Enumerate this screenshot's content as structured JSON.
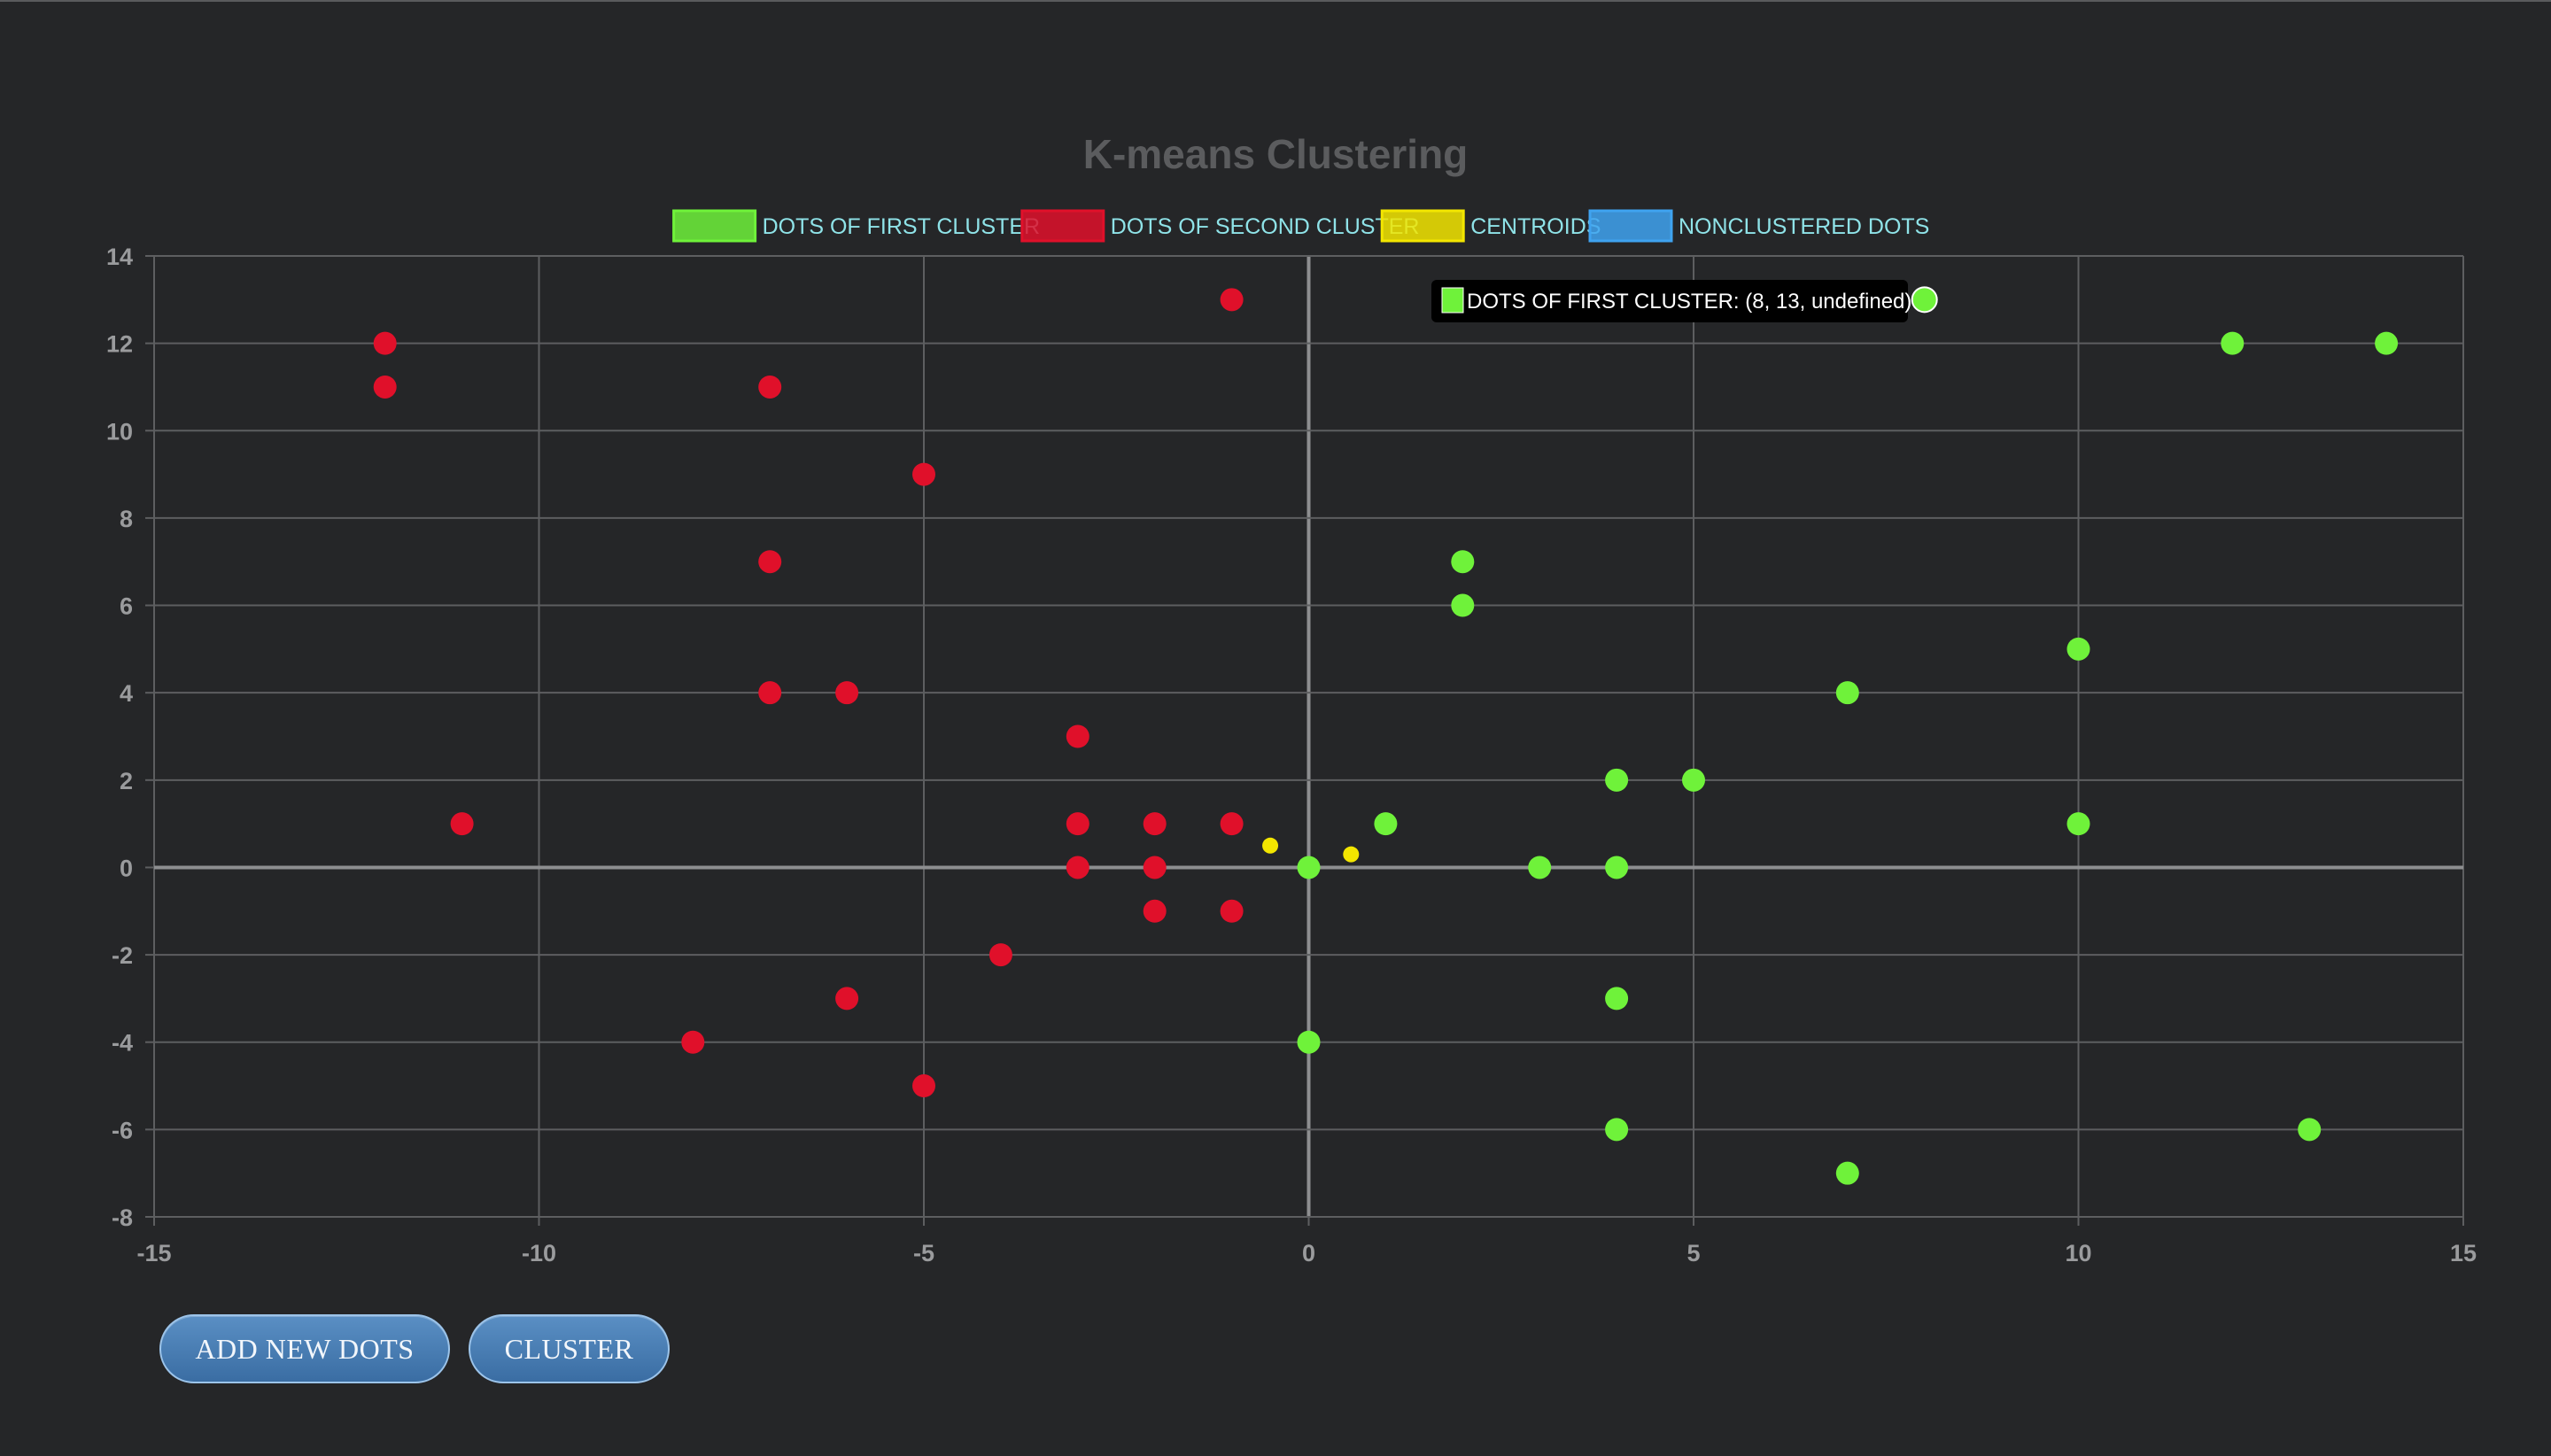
{
  "chart_data": {
    "type": "scatter",
    "title": "K-means Clustering",
    "xlim": [
      -15,
      15
    ],
    "ylim": [
      -8,
      14
    ],
    "x_ticks": [
      -15,
      -10,
      -5,
      0,
      5,
      10,
      15
    ],
    "y_ticks": [
      14,
      12,
      10,
      8,
      6,
      4,
      2,
      0,
      -2,
      -4,
      -6,
      -8
    ],
    "grid": true,
    "legend_position": "top-center",
    "series": [
      {
        "name": "DOTS OF FIRST CLUSTER",
        "color": "#6ff23a",
        "points": [
          [
            8,
            13
          ],
          [
            12,
            12
          ],
          [
            14,
            12
          ],
          [
            2,
            7
          ],
          [
            2,
            6
          ],
          [
            10,
            5
          ],
          [
            7,
            4
          ],
          [
            4,
            2
          ],
          [
            5,
            2
          ],
          [
            1,
            1
          ],
          [
            10,
            1
          ],
          [
            0,
            0
          ],
          [
            3,
            0
          ],
          [
            4,
            0
          ],
          [
            4,
            -3
          ],
          [
            0,
            -4
          ],
          [
            4,
            -6
          ],
          [
            13,
            -6
          ],
          [
            7,
            -7
          ]
        ]
      },
      {
        "name": "DOTS OF SECOND CLUSTER",
        "color": "#e0102a",
        "points": [
          [
            -1,
            13
          ],
          [
            -12,
            12
          ],
          [
            -12,
            11
          ],
          [
            -7,
            11
          ],
          [
            -5,
            9
          ],
          [
            -7,
            7
          ],
          [
            -7,
            4
          ],
          [
            -6,
            4
          ],
          [
            -3,
            3
          ],
          [
            -11,
            1
          ],
          [
            -3,
            1
          ],
          [
            -2,
            1
          ],
          [
            -1,
            1
          ],
          [
            -3,
            0
          ],
          [
            -2,
            0
          ],
          [
            -2,
            -1
          ],
          [
            -1,
            -1
          ],
          [
            -4,
            -2
          ],
          [
            -6,
            -3
          ],
          [
            -8,
            -4
          ],
          [
            -5,
            -5
          ]
        ]
      },
      {
        "name": "CENTROIDS",
        "color": "#f3e600",
        "points": [
          [
            -0.5,
            0.5
          ],
          [
            0.55,
            0.3
          ]
        ]
      },
      {
        "name": "NONCLUSTERED DOTS",
        "color": "#3fa3f0",
        "points": []
      }
    ]
  },
  "tooltip": {
    "text": "DOTS OF FIRST CLUSTER: (8, 13, undefined)",
    "color": "#6ff23a",
    "anchor": [
      8,
      13
    ]
  },
  "buttons": {
    "add_label": "ADD NEW DOTS",
    "cluster_label": "CLUSTER"
  }
}
